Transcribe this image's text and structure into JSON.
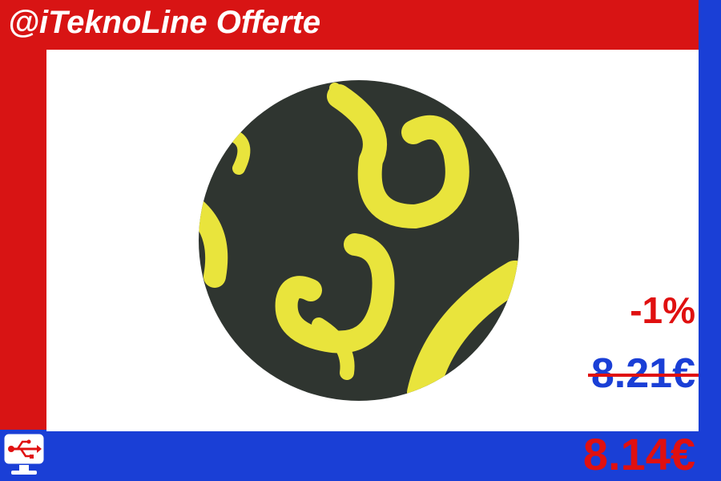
{
  "header": {
    "title": "@iTeknoLine Offerte"
  },
  "product": {
    "image_icon": "mouse-pad-yellow-brush-pattern"
  },
  "pricing": {
    "discount": "-1%",
    "old_price": "8.21€",
    "new_price": "8.14€"
  },
  "logo": {
    "icon": "usb-monitor-icon"
  },
  "colors": {
    "red": "#d81414",
    "blue": "#1a3fd6",
    "pad": "#2f3530",
    "brush": "#e9e43c"
  }
}
